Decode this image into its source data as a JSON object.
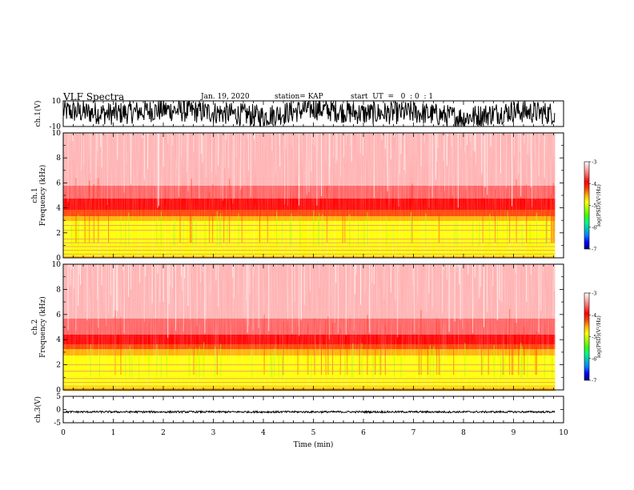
{
  "header": {
    "title": "VLF Spectra",
    "date": "Jan. 19, 2020",
    "station": "station= KAP",
    "start_ut": "start  UT  =   0  : 0  : 1"
  },
  "colors": {
    "colorbar": [
      "#000080",
      "#0000ff",
      "#0080ff",
      "#00c0c0",
      "#00ff80",
      "#40ff00",
      "#a0ff00",
      "#ffff00",
      "#ffb000",
      "#ff4000",
      "#ff0000",
      "#ff6060",
      "#ffb0b0",
      "#ffffff"
    ],
    "trace": "#000000",
    "harmonic_line": "#e8a060"
  },
  "chart_data": [
    {
      "type": "line",
      "panel": "ch1-waveform",
      "ylabel": "ch.1(V)",
      "ylim": [
        -10,
        10
      ],
      "yticks": [
        "10",
        "-10"
      ],
      "xlim": [
        0,
        10
      ],
      "visible_end_min": 9.83,
      "series": [
        {
          "x": [
            0,
            1,
            2,
            3,
            4,
            5,
            6,
            7,
            8,
            9,
            9.83
          ],
          "y": [
            2,
            0,
            3,
            1,
            -2,
            4,
            0,
            1,
            -3,
            2,
            0
          ],
          "amplitude": 9
        }
      ]
    },
    {
      "type": "heatmap",
      "panel": "ch1-spectrogram",
      "ylabel": "ch.1\nFrequency  (kHz)",
      "ylim": [
        0,
        10
      ],
      "yticks": [
        "0",
        "2",
        "4",
        "6",
        "8",
        "10"
      ],
      "xlim": [
        0,
        10
      ],
      "visible_end_min": 9.83,
      "colorbar_label": "log(PSD)(V²/Hz)",
      "colorbar_ticks": [
        "-3",
        "-4",
        "-5",
        "-6",
        "-7"
      ],
      "clim": [
        -7,
        -3
      ],
      "psd_profile_khz": [
        0,
        1,
        2,
        3,
        4,
        5,
        6,
        8,
        10
      ],
      "psd_profile_log": [
        -4.6,
        -5.0,
        -5.0,
        -4.7,
        -4.0,
        -3.7,
        -3.4,
        -3.3,
        -3.2
      ],
      "lines_khz": [
        0.3,
        0.6,
        0.9,
        1.2,
        1.5,
        2.2,
        2.6
      ]
    },
    {
      "type": "heatmap",
      "panel": "ch2-spectrogram",
      "ylabel": "ch.2\nFrequency  (kHz)",
      "ylim": [
        0,
        10
      ],
      "yticks": [
        "0",
        "2",
        "4",
        "6",
        "8",
        "10"
      ],
      "xlim": [
        0,
        10
      ],
      "visible_end_min": 9.83,
      "colorbar_label": "log(PSD)(V²/Hz)",
      "colorbar_ticks": [
        "-3",
        "-4",
        "-5",
        "-6",
        "-7"
      ],
      "clim": [
        -7,
        -3
      ],
      "psd_profile_khz": [
        0,
        1,
        2,
        3,
        4,
        5,
        6,
        8,
        10
      ],
      "psd_profile_log": [
        -4.6,
        -5.0,
        -5.0,
        -4.6,
        -3.9,
        -3.6,
        -3.4,
        -3.3,
        -3.2
      ],
      "lines_khz": [
        0.3,
        0.6,
        0.9,
        1.5,
        2.0
      ]
    },
    {
      "type": "line",
      "panel": "ch3-waveform",
      "ylabel": "ch.3(V)",
      "ylim": [
        -5,
        5
      ],
      "yticks": [
        "5",
        "0",
        "-5"
      ],
      "xlim": [
        0,
        10
      ],
      "xlabel": "Time  (min)",
      "xticks": [
        "0",
        "1",
        "2",
        "3",
        "4",
        "5",
        "6",
        "7",
        "8",
        "9",
        "10"
      ],
      "visible_end_min": 9.83,
      "series": [
        {
          "x": [
            0,
            9.83
          ],
          "y": [
            -0.9,
            -0.9
          ],
          "amplitude": 0.35
        }
      ]
    }
  ]
}
